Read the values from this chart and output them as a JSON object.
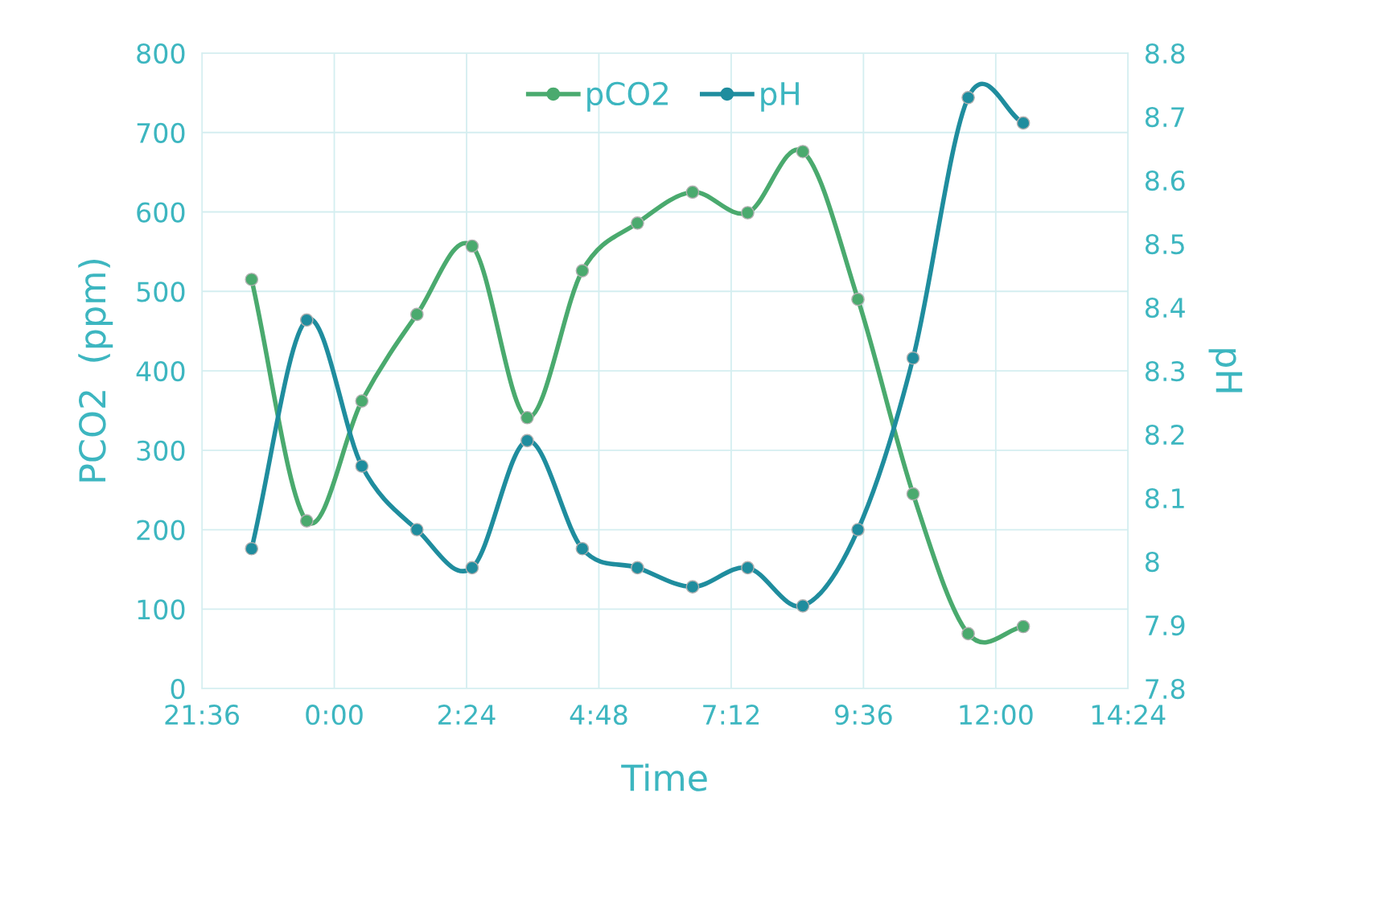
{
  "chart_data": {
    "type": "line",
    "xlabel": "Time",
    "ylabel": "PCO2  (ppm)",
    "y2label": "pH",
    "x": [
      "2000-01-01T22:30",
      "2000-01-01T23:30",
      "2000-01-02T00:30",
      "2000-01-02T01:30",
      "2000-01-02T02:30",
      "2000-01-02T03:30",
      "2000-01-02T04:30",
      "2000-01-02T05:30",
      "2000-01-02T06:30",
      "2000-01-02T07:30",
      "2000-01-02T08:30",
      "2000-01-02T09:30",
      "2000-01-02T10:30",
      "2000-01-02T11:30",
      "2000-01-02T12:30"
    ],
    "series": [
      {
        "name": "pCO2",
        "color": "#4aaa6e",
        "values": [
          515,
          211,
          362,
          471,
          557,
          341,
          526,
          586,
          625,
          599,
          676,
          490,
          245,
          69,
          78
        ]
      },
      {
        "name": "pH",
        "color": "#1f8d9e",
        "axis": "y2",
        "values": [
          8.02,
          8.38,
          8.15,
          8.05,
          7.99,
          8.19,
          8.02,
          7.99,
          7.96,
          7.99,
          7.93,
          8.05,
          8.32,
          8.73,
          8.69
        ]
      }
    ],
    "xlim": [
      "2000-01-01T21:36",
      "2000-01-02T14:24"
    ],
    "xticks": [
      {
        "value": "2000-01-01T21:36",
        "label": "21:36"
      },
      {
        "value": "2000-01-02T00:00",
        "label": "0:00"
      },
      {
        "value": "2000-01-02T02:24",
        "label": "2:24"
      },
      {
        "value": "2000-01-02T04:48",
        "label": "4:48"
      },
      {
        "value": "2000-01-02T07:12",
        "label": "7:12"
      },
      {
        "value": "2000-01-02T09:36",
        "label": "9:36"
      },
      {
        "value": "2000-01-02T12:00",
        "label": "12:00"
      },
      {
        "value": "2000-01-02T14:24",
        "label": "14:24"
      }
    ],
    "ylim": [
      0,
      800
    ],
    "yticks": [
      0,
      100,
      200,
      300,
      400,
      500,
      600,
      700,
      800
    ],
    "y2lim": [
      7.8,
      8.8
    ],
    "y2ticks": [
      7.8,
      7.9,
      8,
      8.1,
      8.2,
      8.3,
      8.4,
      8.5,
      8.6,
      8.7,
      8.8
    ],
    "grid": true,
    "legend": "top",
    "marker": "circle",
    "line_style": "solid"
  }
}
